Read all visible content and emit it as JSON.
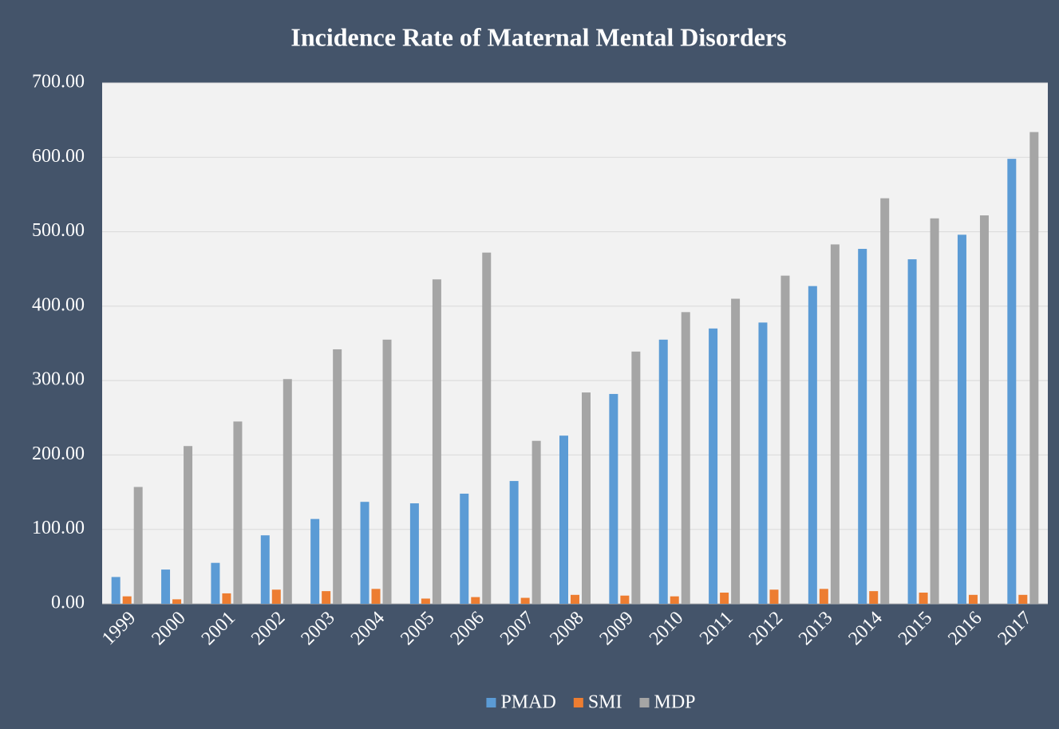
{
  "chart_data": {
    "type": "bar",
    "title": "Incidence Rate of Maternal Mental Disorders",
    "categories": [
      "1999",
      "2000",
      "2001",
      "2002",
      "2003",
      "2004",
      "2005",
      "2006",
      "2007",
      "2008",
      "2009",
      "2010",
      "2011",
      "2012",
      "2013",
      "2014",
      "2015",
      "2016",
      "2017"
    ],
    "series": [
      {
        "name": "PMAD",
        "color": "#5b9bd5",
        "values": [
          36,
          46,
          55,
          92,
          114,
          137,
          135,
          148,
          165,
          226,
          282,
          355,
          370,
          378,
          427,
          477,
          463,
          496,
          598
        ]
      },
      {
        "name": "SMI",
        "color": "#ed7d31",
        "values": [
          10,
          6,
          14,
          19,
          17,
          20,
          7,
          9,
          8,
          12,
          11,
          10,
          15,
          19,
          20,
          17,
          15,
          12,
          12
        ]
      },
      {
        "name": "MDP",
        "color": "#a5a5a5",
        "values": [
          157,
          212,
          245,
          302,
          342,
          355,
          436,
          472,
          219,
          284,
          339,
          392,
          410,
          441,
          483,
          545,
          518,
          522,
          634
        ]
      }
    ],
    "ylim": [
      0,
      700
    ],
    "yticks": [
      {
        "value": 0,
        "label": "0.00"
      },
      {
        "value": 100,
        "label": "100.00"
      },
      {
        "value": 200,
        "label": "200.00"
      },
      {
        "value": 300,
        "label": "300.00"
      },
      {
        "value": 400,
        "label": "400.00"
      },
      {
        "value": 500,
        "label": "500.00"
      },
      {
        "value": 600,
        "label": "600.00"
      },
      {
        "value": 700,
        "label": "700.00"
      }
    ],
    "grid": true,
    "legend": "bottom"
  }
}
